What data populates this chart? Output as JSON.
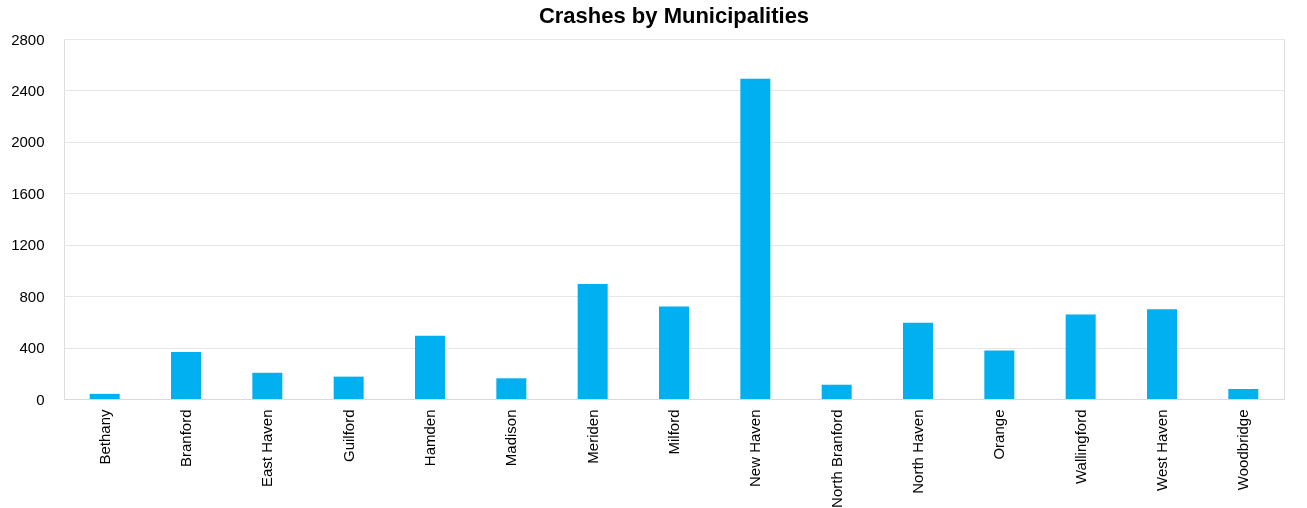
{
  "chart_data": {
    "type": "bar",
    "title": "Crashes by Municipalities",
    "categories": [
      "Bethany",
      "Branford",
      "East Haven",
      "Guilford",
      "Hamden",
      "Madison",
      "Meriden",
      "Milford",
      "New Haven",
      "North Branford",
      "North Haven",
      "Orange",
      "Wallingford",
      "West Haven",
      "Woodbridge"
    ],
    "values": [
      40,
      365,
      204,
      174,
      492,
      161,
      895,
      719,
      2490,
      111,
      594,
      378,
      658,
      699,
      78
    ],
    "color": "#00b0f0",
    "ylim": [
      0,
      2800
    ],
    "yticks": [
      0,
      400,
      800,
      1200,
      1600,
      2000,
      2400,
      2800
    ],
    "grid": "y"
  }
}
